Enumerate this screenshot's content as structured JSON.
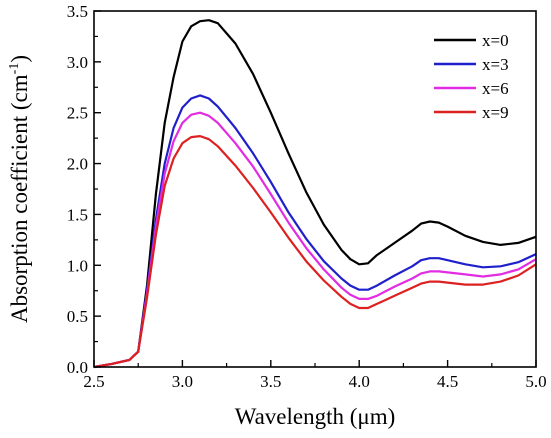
{
  "chart_data": {
    "type": "line",
    "xlabel": "Wavelength (μm)",
    "ylabel": "Absorption coefficient (cm",
    "ylabel_sup": "-1",
    "ylabel_close": ")",
    "xlim": [
      2.5,
      5.0
    ],
    "ylim": [
      0.0,
      3.5
    ],
    "x_ticks": [
      "2.5",
      "3.0",
      "3.5",
      "4.0",
      "4.5",
      "5.0"
    ],
    "y_ticks": [
      "0.0",
      "0.5",
      "1.0",
      "1.5",
      "2.0",
      "2.5",
      "3.0",
      "3.5"
    ],
    "grid": false,
    "legend_position": "top-right",
    "series": [
      {
        "name": "x=0",
        "color": "#000000",
        "points": [
          [
            2.5,
            0.0
          ],
          [
            2.6,
            0.03
          ],
          [
            2.7,
            0.07
          ],
          [
            2.75,
            0.15
          ],
          [
            2.8,
            0.8
          ],
          [
            2.85,
            1.7
          ],
          [
            2.9,
            2.4
          ],
          [
            2.95,
            2.85
          ],
          [
            3.0,
            3.2
          ],
          [
            3.05,
            3.35
          ],
          [
            3.1,
            3.4
          ],
          [
            3.15,
            3.41
          ],
          [
            3.2,
            3.38
          ],
          [
            3.3,
            3.18
          ],
          [
            3.4,
            2.88
          ],
          [
            3.5,
            2.5
          ],
          [
            3.6,
            2.1
          ],
          [
            3.7,
            1.72
          ],
          [
            3.8,
            1.4
          ],
          [
            3.9,
            1.15
          ],
          [
            3.95,
            1.06
          ],
          [
            4.0,
            1.01
          ],
          [
            4.05,
            1.02
          ],
          [
            4.1,
            1.1
          ],
          [
            4.2,
            1.22
          ],
          [
            4.3,
            1.34
          ],
          [
            4.35,
            1.41
          ],
          [
            4.4,
            1.43
          ],
          [
            4.45,
            1.42
          ],
          [
            4.5,
            1.38
          ],
          [
            4.6,
            1.29
          ],
          [
            4.7,
            1.23
          ],
          [
            4.8,
            1.2
          ],
          [
            4.9,
            1.22
          ],
          [
            5.0,
            1.28
          ]
        ]
      },
      {
        "name": "x=3",
        "color": "#1f1fcc",
        "points": [
          [
            2.5,
            0.0
          ],
          [
            2.6,
            0.03
          ],
          [
            2.7,
            0.07
          ],
          [
            2.75,
            0.15
          ],
          [
            2.8,
            0.75
          ],
          [
            2.85,
            1.45
          ],
          [
            2.9,
            2.0
          ],
          [
            2.95,
            2.35
          ],
          [
            3.0,
            2.55
          ],
          [
            3.05,
            2.64
          ],
          [
            3.1,
            2.67
          ],
          [
            3.15,
            2.64
          ],
          [
            3.2,
            2.56
          ],
          [
            3.3,
            2.35
          ],
          [
            3.4,
            2.1
          ],
          [
            3.5,
            1.82
          ],
          [
            3.6,
            1.52
          ],
          [
            3.7,
            1.26
          ],
          [
            3.8,
            1.04
          ],
          [
            3.9,
            0.87
          ],
          [
            3.95,
            0.8
          ],
          [
            4.0,
            0.76
          ],
          [
            4.05,
            0.76
          ],
          [
            4.1,
            0.8
          ],
          [
            4.2,
            0.9
          ],
          [
            4.3,
            0.99
          ],
          [
            4.35,
            1.05
          ],
          [
            4.4,
            1.07
          ],
          [
            4.45,
            1.07
          ],
          [
            4.5,
            1.05
          ],
          [
            4.6,
            1.01
          ],
          [
            4.7,
            0.98
          ],
          [
            4.8,
            0.99
          ],
          [
            4.9,
            1.03
          ],
          [
            5.0,
            1.11
          ]
        ]
      },
      {
        "name": "x=6",
        "color": "#e22be2",
        "points": [
          [
            2.5,
            0.0
          ],
          [
            2.6,
            0.03
          ],
          [
            2.7,
            0.07
          ],
          [
            2.75,
            0.15
          ],
          [
            2.8,
            0.72
          ],
          [
            2.85,
            1.38
          ],
          [
            2.9,
            1.9
          ],
          [
            2.95,
            2.22
          ],
          [
            3.0,
            2.4
          ],
          [
            3.05,
            2.48
          ],
          [
            3.1,
            2.5
          ],
          [
            3.15,
            2.47
          ],
          [
            3.2,
            2.4
          ],
          [
            3.3,
            2.2
          ],
          [
            3.4,
            1.97
          ],
          [
            3.5,
            1.7
          ],
          [
            3.6,
            1.42
          ],
          [
            3.7,
            1.17
          ],
          [
            3.8,
            0.96
          ],
          [
            3.9,
            0.78
          ],
          [
            3.95,
            0.71
          ],
          [
            4.0,
            0.67
          ],
          [
            4.05,
            0.67
          ],
          [
            4.1,
            0.7
          ],
          [
            4.2,
            0.79
          ],
          [
            4.3,
            0.87
          ],
          [
            4.35,
            0.92
          ],
          [
            4.4,
            0.94
          ],
          [
            4.45,
            0.94
          ],
          [
            4.5,
            0.93
          ],
          [
            4.6,
            0.91
          ],
          [
            4.7,
            0.89
          ],
          [
            4.8,
            0.91
          ],
          [
            4.9,
            0.96
          ],
          [
            5.0,
            1.06
          ]
        ]
      },
      {
        "name": "x=9",
        "color": "#dd2020",
        "points": [
          [
            2.5,
            0.0
          ],
          [
            2.6,
            0.03
          ],
          [
            2.7,
            0.07
          ],
          [
            2.75,
            0.15
          ],
          [
            2.8,
            0.68
          ],
          [
            2.85,
            1.3
          ],
          [
            2.9,
            1.78
          ],
          [
            2.95,
            2.05
          ],
          [
            3.0,
            2.2
          ],
          [
            3.05,
            2.26
          ],
          [
            3.1,
            2.27
          ],
          [
            3.15,
            2.24
          ],
          [
            3.2,
            2.17
          ],
          [
            3.3,
            1.98
          ],
          [
            3.4,
            1.76
          ],
          [
            3.5,
            1.52
          ],
          [
            3.6,
            1.27
          ],
          [
            3.7,
            1.04
          ],
          [
            3.8,
            0.85
          ],
          [
            3.9,
            0.69
          ],
          [
            3.95,
            0.62
          ],
          [
            4.0,
            0.58
          ],
          [
            4.05,
            0.58
          ],
          [
            4.1,
            0.62
          ],
          [
            4.2,
            0.7
          ],
          [
            4.3,
            0.78
          ],
          [
            4.35,
            0.82
          ],
          [
            4.4,
            0.84
          ],
          [
            4.45,
            0.84
          ],
          [
            4.5,
            0.83
          ],
          [
            4.6,
            0.81
          ],
          [
            4.7,
            0.81
          ],
          [
            4.8,
            0.84
          ],
          [
            4.9,
            0.9
          ],
          [
            5.0,
            1.01
          ]
        ]
      }
    ]
  }
}
